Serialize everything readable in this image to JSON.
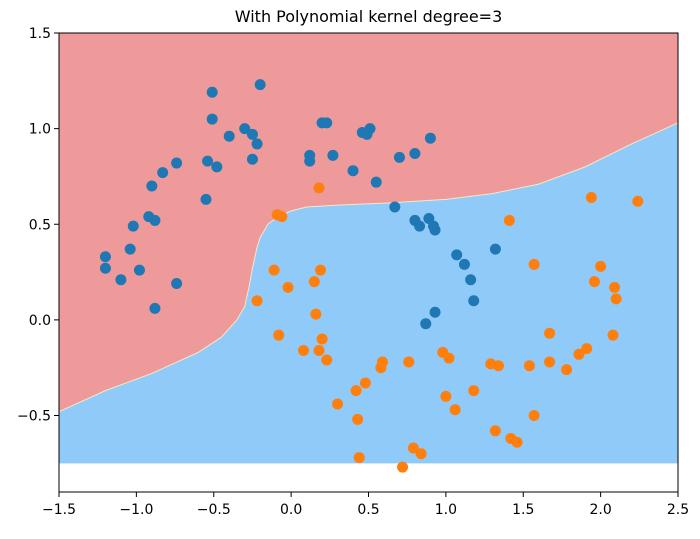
{
  "chart_data": {
    "type": "scatter",
    "title": "With Polynomial kernel degree=3",
    "xlabel": "",
    "ylabel": "",
    "xlim": [
      -1.5,
      2.5
    ],
    "ylim": [
      -0.9,
      1.5
    ],
    "xticks": [
      -1.5,
      -1.0,
      -0.5,
      0.0,
      0.5,
      1.0,
      1.5,
      2.0,
      2.5
    ],
    "yticks": [
      -0.5,
      0.0,
      0.5,
      1.0,
      1.5
    ],
    "xtick_labels": [
      "−1.5",
      "−1.0",
      "−0.5",
      "0.0",
      "0.5",
      "1.0",
      "1.5",
      "2.0",
      "2.5"
    ],
    "ytick_labels": [
      "−0.5",
      "0.0",
      "0.5",
      "1.0",
      "1.5"
    ],
    "grid": false,
    "colors": {
      "class0_region": "#ee9a9a",
      "class1_region": "#90caf8",
      "class0_points": "#1f77b4",
      "class1_points": "#ff7f0e"
    },
    "decision_regions": {
      "shaded_y_min": -0.75,
      "boundary": [
        [
          -1.5,
          -0.48
        ],
        [
          -1.2,
          -0.37
        ],
        [
          -0.9,
          -0.28
        ],
        [
          -0.6,
          -0.17
        ],
        [
          -0.45,
          -0.09
        ],
        [
          -0.35,
          0.0
        ],
        [
          -0.3,
          0.07
        ],
        [
          -0.27,
          0.18
        ],
        [
          -0.25,
          0.27
        ],
        [
          -0.22,
          0.38
        ],
        [
          -0.2,
          0.43
        ],
        [
          -0.15,
          0.5
        ],
        [
          -0.08,
          0.54
        ],
        [
          0.0,
          0.57
        ],
        [
          0.1,
          0.59
        ],
        [
          0.3,
          0.6
        ],
        [
          0.6,
          0.61
        ],
        [
          1.0,
          0.63
        ],
        [
          1.3,
          0.66
        ],
        [
          1.6,
          0.71
        ],
        [
          1.9,
          0.8
        ],
        [
          2.2,
          0.92
        ],
        [
          2.5,
          1.03
        ]
      ]
    },
    "series": [
      {
        "color": "#1f77b4",
        "points": [
          [
            -1.2,
            0.27
          ],
          [
            -1.2,
            0.33
          ],
          [
            -1.1,
            0.21
          ],
          [
            -1.04,
            0.37
          ],
          [
            -1.02,
            0.49
          ],
          [
            -0.98,
            0.26
          ],
          [
            -0.92,
            0.54
          ],
          [
            -0.88,
            0.52
          ],
          [
            -0.9,
            0.7
          ],
          [
            -0.83,
            0.77
          ],
          [
            -0.88,
            0.06
          ],
          [
            -0.74,
            0.82
          ],
          [
            -0.74,
            0.19
          ],
          [
            -0.55,
            0.63
          ],
          [
            -0.54,
            0.83
          ],
          [
            -0.51,
            1.05
          ],
          [
            -0.51,
            1.19
          ],
          [
            -0.48,
            0.8
          ],
          [
            -0.4,
            0.96
          ],
          [
            -0.3,
            1.0
          ],
          [
            -0.25,
            0.97
          ],
          [
            -0.22,
            0.92
          ],
          [
            -0.25,
            0.84
          ],
          [
            -0.2,
            1.23
          ],
          [
            0.12,
            0.86
          ],
          [
            0.12,
            0.83
          ],
          [
            0.2,
            1.03
          ],
          [
            0.23,
            1.03
          ],
          [
            0.27,
            0.86
          ],
          [
            0.4,
            0.78
          ],
          [
            0.46,
            0.98
          ],
          [
            0.49,
            0.97
          ],
          [
            0.51,
            1.0
          ],
          [
            0.55,
            0.72
          ],
          [
            0.67,
            0.59
          ],
          [
            0.7,
            0.85
          ],
          [
            0.8,
            0.87
          ],
          [
            0.8,
            0.52
          ],
          [
            0.83,
            0.49
          ],
          [
            0.89,
            0.53
          ],
          [
            0.9,
            0.95
          ],
          [
            0.92,
            0.49
          ],
          [
            0.93,
            0.47
          ],
          [
            1.07,
            0.34
          ],
          [
            1.12,
            0.29
          ],
          [
            1.16,
            0.21
          ],
          [
            1.18,
            0.1
          ],
          [
            1.32,
            0.37
          ],
          [
            0.93,
            0.04
          ],
          [
            0.87,
            -0.02
          ]
        ]
      },
      {
        "color": "#ff7f0e",
        "points": [
          [
            0.18,
            0.69
          ],
          [
            -0.09,
            0.55
          ],
          [
            -0.06,
            0.54
          ],
          [
            -0.11,
            0.26
          ],
          [
            -0.22,
            0.1
          ],
          [
            -0.02,
            0.17
          ],
          [
            -0.08,
            -0.08
          ],
          [
            0.15,
            0.2
          ],
          [
            0.19,
            0.26
          ],
          [
            0.16,
            0.03
          ],
          [
            0.2,
            -0.1
          ],
          [
            0.18,
            -0.16
          ],
          [
            0.23,
            -0.21
          ],
          [
            0.08,
            -0.16
          ],
          [
            0.3,
            -0.44
          ],
          [
            0.42,
            -0.37
          ],
          [
            0.48,
            -0.33
          ],
          [
            0.43,
            -0.52
          ],
          [
            0.44,
            -0.72
          ],
          [
            0.58,
            -0.25
          ],
          [
            0.59,
            -0.22
          ],
          [
            0.72,
            -0.77
          ],
          [
            0.76,
            -0.22
          ],
          [
            0.79,
            -0.67
          ],
          [
            0.84,
            -0.7
          ],
          [
            0.98,
            -0.17
          ],
          [
            1.0,
            -0.4
          ],
          [
            1.02,
            -0.2
          ],
          [
            1.06,
            -0.47
          ],
          [
            1.18,
            -0.37
          ],
          [
            1.29,
            -0.23
          ],
          [
            1.34,
            -0.24
          ],
          [
            1.32,
            -0.58
          ],
          [
            1.42,
            -0.62
          ],
          [
            1.46,
            -0.64
          ],
          [
            1.41,
            0.52
          ],
          [
            1.57,
            0.29
          ],
          [
            1.54,
            -0.24
          ],
          [
            1.57,
            -0.5
          ],
          [
            1.67,
            -0.07
          ],
          [
            1.67,
            -0.22
          ],
          [
            1.78,
            -0.26
          ],
          [
            1.86,
            -0.18
          ],
          [
            1.91,
            -0.15
          ],
          [
            1.94,
            0.64
          ],
          [
            1.96,
            0.2
          ],
          [
            2.0,
            0.28
          ],
          [
            2.08,
            -0.08
          ],
          [
            2.09,
            0.17
          ],
          [
            2.1,
            0.11
          ],
          [
            2.24,
            0.62
          ]
        ]
      }
    ]
  }
}
